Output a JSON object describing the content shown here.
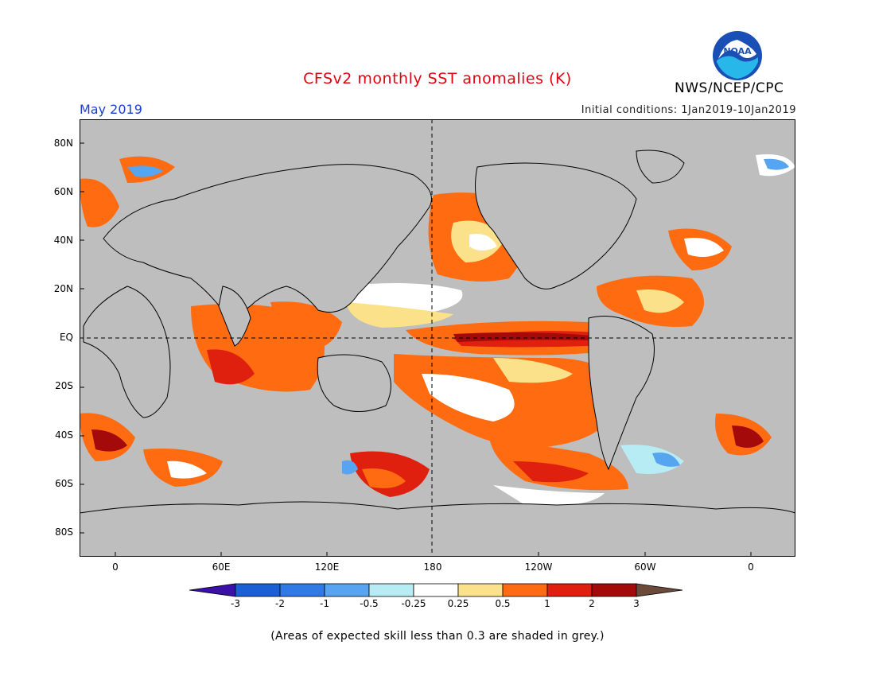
{
  "header": {
    "title": "CFSv2 monthly SST anomalies (K)",
    "month": "May 2019",
    "initial_conditions": "Initial conditions: 1Jan2019-10Jan2019",
    "agency": "NWS/NCEP/CPC",
    "logo_text": "NOAA"
  },
  "map": {
    "land_color": "#bebebe",
    "ocean_grey_color": "#bebebe",
    "lat_labels": [
      "80N",
      "60N",
      "40N",
      "20N",
      "EQ",
      "20S",
      "40S",
      "60S",
      "80S"
    ],
    "lon_labels": [
      "0",
      "60E",
      "120E",
      "180",
      "120W",
      "60W",
      "0"
    ],
    "reference_lines": [
      "Equator",
      "180"
    ]
  },
  "colorbar": {
    "labels": [
      "-3",
      "-2",
      "-1",
      "-0.5",
      "-0.25",
      "0.25",
      "0.5",
      "1",
      "2",
      "3"
    ],
    "colors": [
      "#3a10a8",
      "#1b5fd6",
      "#2f7ae6",
      "#57a4f0",
      "#b8ecf5",
      "#ffffff",
      "#fbe28a",
      "#ff6b10",
      "#e0200f",
      "#a50a0a",
      "#6b4a3a"
    ]
  },
  "footnote": "(Areas of expected skill less than 0.3 are shaded in grey.)"
}
